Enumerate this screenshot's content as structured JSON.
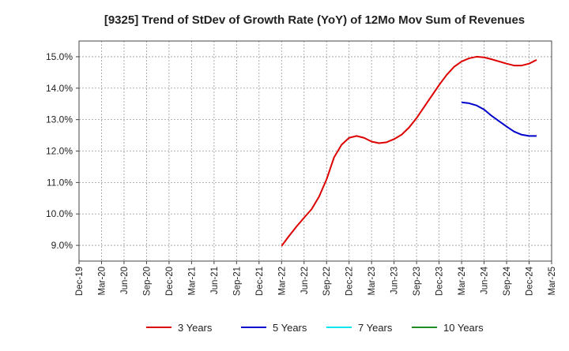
{
  "chart_data": {
    "type": "line",
    "title": "[9325]  Trend of StDev of Growth Rate (YoY) of 12Mo Mov Sum of Revenues",
    "xlabel": "",
    "ylabel": "",
    "ylim": [
      8.5,
      15.5
    ],
    "y_ticks": [
      9.0,
      10.0,
      11.0,
      12.0,
      13.0,
      14.0,
      15.0
    ],
    "y_tick_labels": [
      "9.0%",
      "10.0%",
      "11.0%",
      "12.0%",
      "13.0%",
      "14.0%",
      "15.0%"
    ],
    "x_tick_labels": [
      "Dec-19",
      "Mar-20",
      "Jun-20",
      "Sep-20",
      "Dec-20",
      "Mar-21",
      "Jun-21",
      "Sep-21",
      "Dec-21",
      "Mar-22",
      "Jun-22",
      "Sep-22",
      "Dec-22",
      "Mar-23",
      "Jun-23",
      "Sep-23",
      "Dec-23",
      "Mar-24",
      "Jun-24",
      "Sep-24",
      "Dec-24",
      "Mar-25"
    ],
    "x_start": "Dec-19",
    "grid": true,
    "legend_position": "bottom",
    "series": [
      {
        "name": "3 Years",
        "color": "#dd0000",
        "start_month_index": 27,
        "values": [
          8.98,
          9.3,
          9.6,
          9.88,
          10.15,
          10.55,
          11.1,
          11.8,
          12.2,
          12.42,
          12.48,
          12.42,
          12.3,
          12.25,
          12.28,
          12.38,
          12.52,
          12.75,
          13.05,
          13.4,
          13.75,
          14.1,
          14.42,
          14.68,
          14.85,
          14.95,
          15.0,
          14.98,
          14.92,
          14.85,
          14.78,
          14.72,
          14.72,
          14.78,
          14.9
        ]
      },
      {
        "name": "5 Years",
        "color": "#0000cc",
        "start_month_index": 51,
        "values": [
          13.55,
          13.52,
          13.45,
          13.32,
          13.12,
          12.95,
          12.78,
          12.62,
          12.52,
          12.48,
          12.48
        ]
      },
      {
        "name": "7 Years",
        "color": "#00e5ee",
        "start_month_index": 0,
        "values": []
      },
      {
        "name": "10 Years",
        "color": "#228b22",
        "start_month_index": 0,
        "values": []
      }
    ]
  }
}
